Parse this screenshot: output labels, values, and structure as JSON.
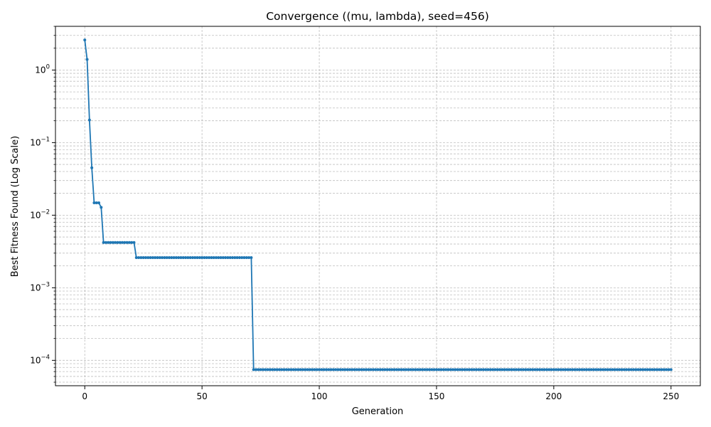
{
  "chart_data": {
    "type": "line",
    "title": "Convergence ((mu, lambda), seed=456)",
    "xlabel": "Generation",
    "ylabel": "Best Fitness Found (Log Scale)",
    "yscale": "log",
    "xlim": [
      -12.5,
      262.5
    ],
    "ylim": [
      4.47e-05,
      4.0
    ],
    "grid": true,
    "legend": "none",
    "x_ticks": [
      0,
      50,
      100,
      150,
      200,
      250
    ],
    "y_ticks": [
      {
        "value": 0.0001,
        "base": "10",
        "exp": "−4"
      },
      {
        "value": 0.001,
        "base": "10",
        "exp": "−3"
      },
      {
        "value": 0.01,
        "base": "10",
        "exp": "−2"
      },
      {
        "value": 0.1,
        "base": "10",
        "exp": "−1"
      },
      {
        "value": 1,
        "base": "10",
        "exp": "0"
      }
    ],
    "color": "#1f77b4",
    "series_points": [
      [
        0,
        2.6
      ],
      [
        1,
        1.4
      ],
      [
        2,
        0.205
      ],
      [
        3,
        0.045
      ],
      [
        4,
        0.0148
      ],
      [
        5,
        0.0148
      ],
      [
        6,
        0.0148
      ],
      [
        7,
        0.0128
      ],
      [
        8,
        0.0042
      ]
    ],
    "plateaus": [
      {
        "from": 8,
        "to": 21,
        "value": 0.0042
      },
      {
        "from": 22,
        "to": 71,
        "value": 0.0026
      },
      {
        "from": 72,
        "to": 250,
        "value": 7.45e-05
      }
    ]
  }
}
